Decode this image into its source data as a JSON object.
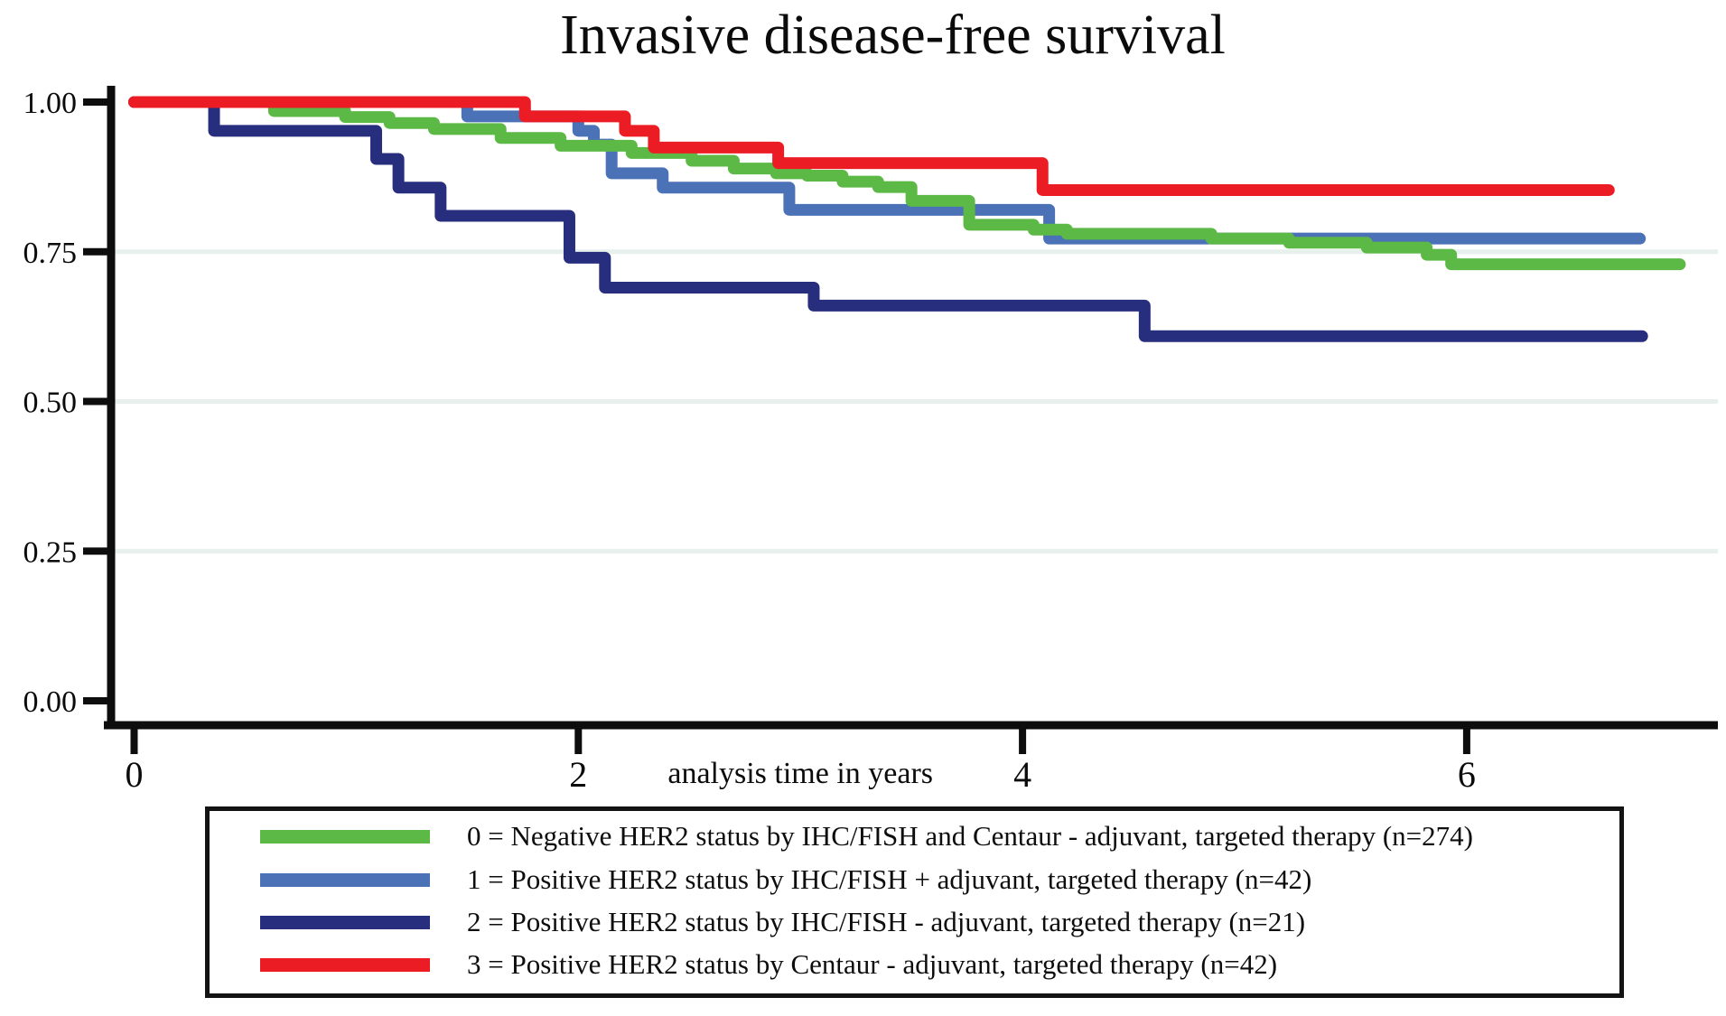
{
  "chart_data": {
    "type": "line",
    "subtype": "kaplan-meier-step",
    "title": "Invasive disease-free survival",
    "xlabel": "analysis time in years",
    "ylabel": "",
    "xlim": [
      0,
      7.15
    ],
    "ylim": [
      0.0,
      1.0
    ],
    "grid_on": true,
    "gridlines_y": [
      0.75,
      0.5,
      0.25
    ],
    "grid_color": "#e7f0ec",
    "axis_color": "#0d0d0d",
    "background_color": "#ffffff",
    "legend_position": "bottom-box",
    "x_ticks": [
      {
        "v": 0,
        "label": "0"
      },
      {
        "v": 2,
        "label": "2"
      },
      {
        "v": 4,
        "label": "4"
      },
      {
        "v": 6,
        "label": "6"
      }
    ],
    "y_ticks": [
      {
        "v": 1.0,
        "label": "1.00"
      },
      {
        "v": 0.75,
        "label": "0.75"
      },
      {
        "v": 0.5,
        "label": "0.50"
      },
      {
        "v": 0.25,
        "label": "0.25"
      },
      {
        "v": 0.0,
        "label": "0.00"
      }
    ],
    "draw_order": [
      1,
      0,
      2,
      3
    ],
    "series": [
      {
        "label": "0 = Negative HER2 status by IHC/FISH and Centaur - adjuvant, targeted therapy (n=274)",
        "color": "#5cb946",
        "steps": [
          [
            0,
            1.0
          ],
          [
            0.63,
            0.985
          ],
          [
            0.95,
            0.975
          ],
          [
            1.15,
            0.965
          ],
          [
            1.35,
            0.955
          ],
          [
            1.65,
            0.94
          ],
          [
            1.92,
            0.927
          ],
          [
            2.24,
            0.915
          ],
          [
            2.51,
            0.902
          ],
          [
            2.7,
            0.889
          ],
          [
            2.89,
            0.881
          ],
          [
            3.03,
            0.877
          ],
          [
            3.19,
            0.867
          ],
          [
            3.35,
            0.858
          ],
          [
            3.5,
            0.835
          ],
          [
            3.76,
            0.795
          ],
          [
            4.05,
            0.787
          ],
          [
            4.2,
            0.78
          ],
          [
            4.85,
            0.772
          ],
          [
            5.2,
            0.765
          ],
          [
            5.55,
            0.757
          ],
          [
            5.82,
            0.745
          ],
          [
            5.93,
            0.729
          ],
          [
            6.96,
            0.729
          ]
        ]
      },
      {
        "label": "1 = Positive HER2 status by IHC/FISH + adjuvant, targeted therapy (n=42)",
        "color": "#4b71b7",
        "steps": [
          [
            0,
            1.0
          ],
          [
            1.5,
            0.976
          ],
          [
            2.0,
            0.952
          ],
          [
            2.07,
            0.929
          ],
          [
            2.15,
            0.881
          ],
          [
            2.38,
            0.857
          ],
          [
            2.95,
            0.82
          ],
          [
            4.12,
            0.772
          ],
          [
            6.78,
            0.772
          ]
        ]
      },
      {
        "label": "2 = Positive HER2 status by IHC/FISH - adjuvant, targeted therapy (n=21)",
        "color": "#282e7e",
        "steps": [
          [
            0,
            1.0
          ],
          [
            0.36,
            0.952
          ],
          [
            1.09,
            0.905
          ],
          [
            1.19,
            0.857
          ],
          [
            1.38,
            0.81
          ],
          [
            1.96,
            0.74
          ],
          [
            2.12,
            0.69
          ],
          [
            3.06,
            0.66
          ],
          [
            4.55,
            0.609
          ],
          [
            6.79,
            0.609
          ]
        ]
      },
      {
        "label": "3 = Positive HER2 status by Centaur  - adjuvant, targeted therapy (n=42)",
        "color": "#ec1c24",
        "steps": [
          [
            0,
            1.0
          ],
          [
            1.76,
            0.976
          ],
          [
            2.21,
            0.952
          ],
          [
            2.34,
            0.924
          ],
          [
            2.9,
            0.898
          ],
          [
            4.09,
            0.853
          ],
          [
            6.64,
            0.853
          ]
        ]
      }
    ]
  }
}
